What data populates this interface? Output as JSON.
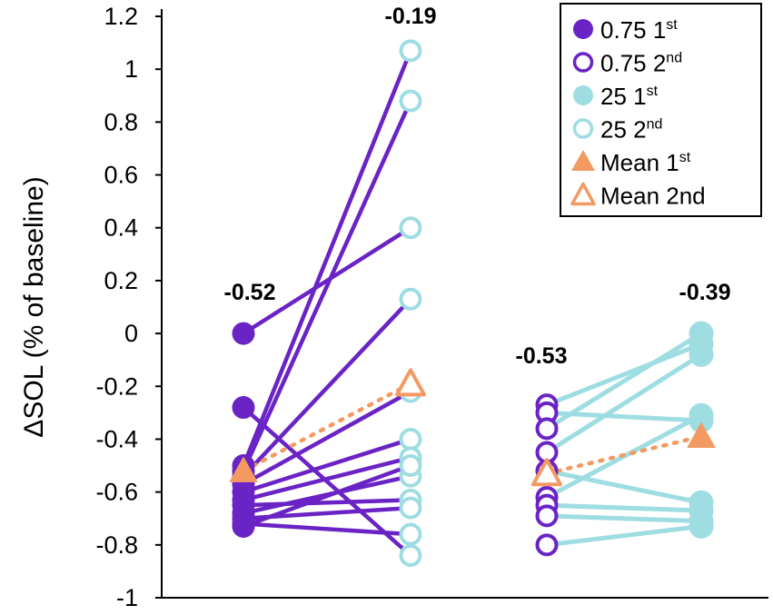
{
  "chart_data": {
    "type": "scatter",
    "ylabel": "ΔSOL (% of baseline)",
    "ylim": [
      -1,
      1.2
    ],
    "yticks": [
      "1.2",
      "1",
      "0.8",
      "0.6",
      "0.4",
      "0.2",
      "0",
      "-0.2",
      "-0.4",
      "-0.6",
      "-0.8",
      "-1"
    ],
    "yticks_values": [
      1.2,
      1,
      0.8,
      0.6,
      0.4,
      0.2,
      0,
      -0.2,
      -0.4,
      -0.6,
      -0.8,
      -1
    ],
    "colors": {
      "purple": "#6a23c4",
      "cyan": "#9edde2",
      "orange": "#f39a63"
    },
    "groups": [
      {
        "name": "0.75",
        "pairs": [
          [
            0.0,
            0.4
          ],
          [
            -0.28,
            -0.84
          ],
          [
            -0.5,
            1.07
          ],
          [
            -0.52,
            0.88
          ],
          [
            -0.54,
            0.13
          ],
          [
            -0.57,
            -0.22
          ],
          [
            -0.6,
            -0.4
          ],
          [
            -0.63,
            -0.47
          ],
          [
            -0.65,
            -0.63
          ],
          [
            -0.68,
            -0.54
          ],
          [
            -0.7,
            -0.66
          ],
          [
            -0.72,
            -0.76
          ],
          [
            -0.73,
            -0.5
          ]
        ],
        "mean": [
          -0.52,
          -0.19
        ]
      },
      {
        "name": "25",
        "pairs": [
          [
            -0.27,
            -0.04
          ],
          [
            -0.3,
            -0.33
          ],
          [
            -0.36,
            0.0
          ],
          [
            -0.45,
            -0.08
          ],
          [
            -0.52,
            -0.64
          ],
          [
            -0.62,
            -0.31
          ],
          [
            -0.65,
            -0.67
          ],
          [
            -0.69,
            -0.71
          ],
          [
            -0.8,
            -0.73
          ]
        ],
        "mean": [
          -0.53,
          -0.39
        ]
      }
    ],
    "annotations": [
      "-0.52",
      "-0.19",
      "-0.53",
      "-0.39"
    ],
    "legend": [
      {
        "label": "0.75 1",
        "sup": "st",
        "marker": "filled-circle",
        "color": "#6a23c4"
      },
      {
        "label": "0.75 2",
        "sup": "nd",
        "marker": "open-circle",
        "color": "#6a23c4"
      },
      {
        "label": "25 1",
        "sup": "st",
        "marker": "filled-circle",
        "color": "#9edde2"
      },
      {
        "label": "25 2",
        "sup": "nd",
        "marker": "open-circle",
        "color": "#9edde2"
      },
      {
        "label": "Mean 1",
        "sup": "st",
        "marker": "filled-triangle",
        "color": "#f39a63"
      },
      {
        "label": "Mean 2nd",
        "sup": "",
        "marker": "open-triangle",
        "color": "#f39a63"
      }
    ],
    "legend_position": "top-right"
  }
}
